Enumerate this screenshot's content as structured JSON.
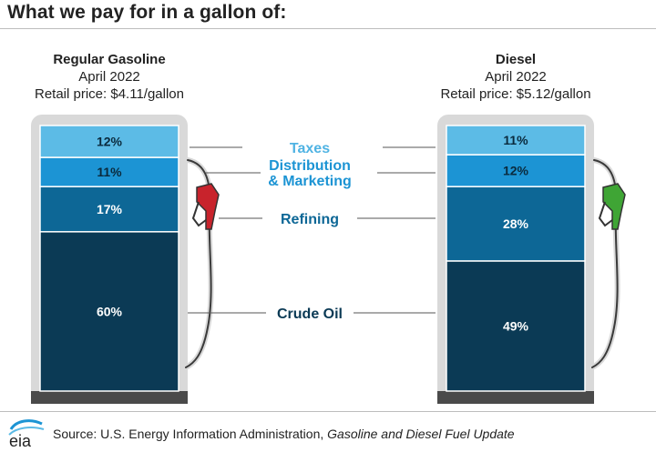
{
  "title": "What we pay for in a gallon of:",
  "pumps": [
    {
      "name": "Regular Gasoline",
      "date": "April 2022",
      "price_label": "Retail price: $4.11/gallon",
      "nozzle_color": "#c8232c"
    },
    {
      "name": "Diesel",
      "date": "April 2022",
      "price_label": "Retail price: $5.12/gallon",
      "nozzle_color": "#3fa535"
    }
  ],
  "chart_data": {
    "type": "bar",
    "orientation": "stacked-100",
    "categories": [
      "Regular Gasoline",
      "Diesel"
    ],
    "series": [
      {
        "name": "Crude Oil",
        "values": [
          60,
          49
        ],
        "color": "#0b3a55",
        "label_color": "#0b3a55"
      },
      {
        "name": "Refining",
        "values": [
          17,
          28
        ],
        "color": "#0d6796",
        "label_color": "#0d6796"
      },
      {
        "name": "Distribution & Marketing",
        "values": [
          11,
          12
        ],
        "color": "#1c94d4",
        "label_color": "#1c94d4"
      },
      {
        "name": "Taxes",
        "values": [
          12,
          11
        ],
        "color": "#5cbbe6",
        "label_color": "#4fb3e3"
      }
    ],
    "value_suffix": "%",
    "ylim": [
      0,
      100
    ]
  },
  "label_lines": {
    "taxes": "Taxes",
    "dist_1": "Distribution",
    "dist_2": "& Marketing",
    "refining": "Refining",
    "crude": "Crude Oil"
  },
  "source": {
    "prefix": "Source: U.S. Energy Information Administration, ",
    "publication": "Gasoline and Diesel Fuel Update"
  },
  "logo_text": "eia"
}
